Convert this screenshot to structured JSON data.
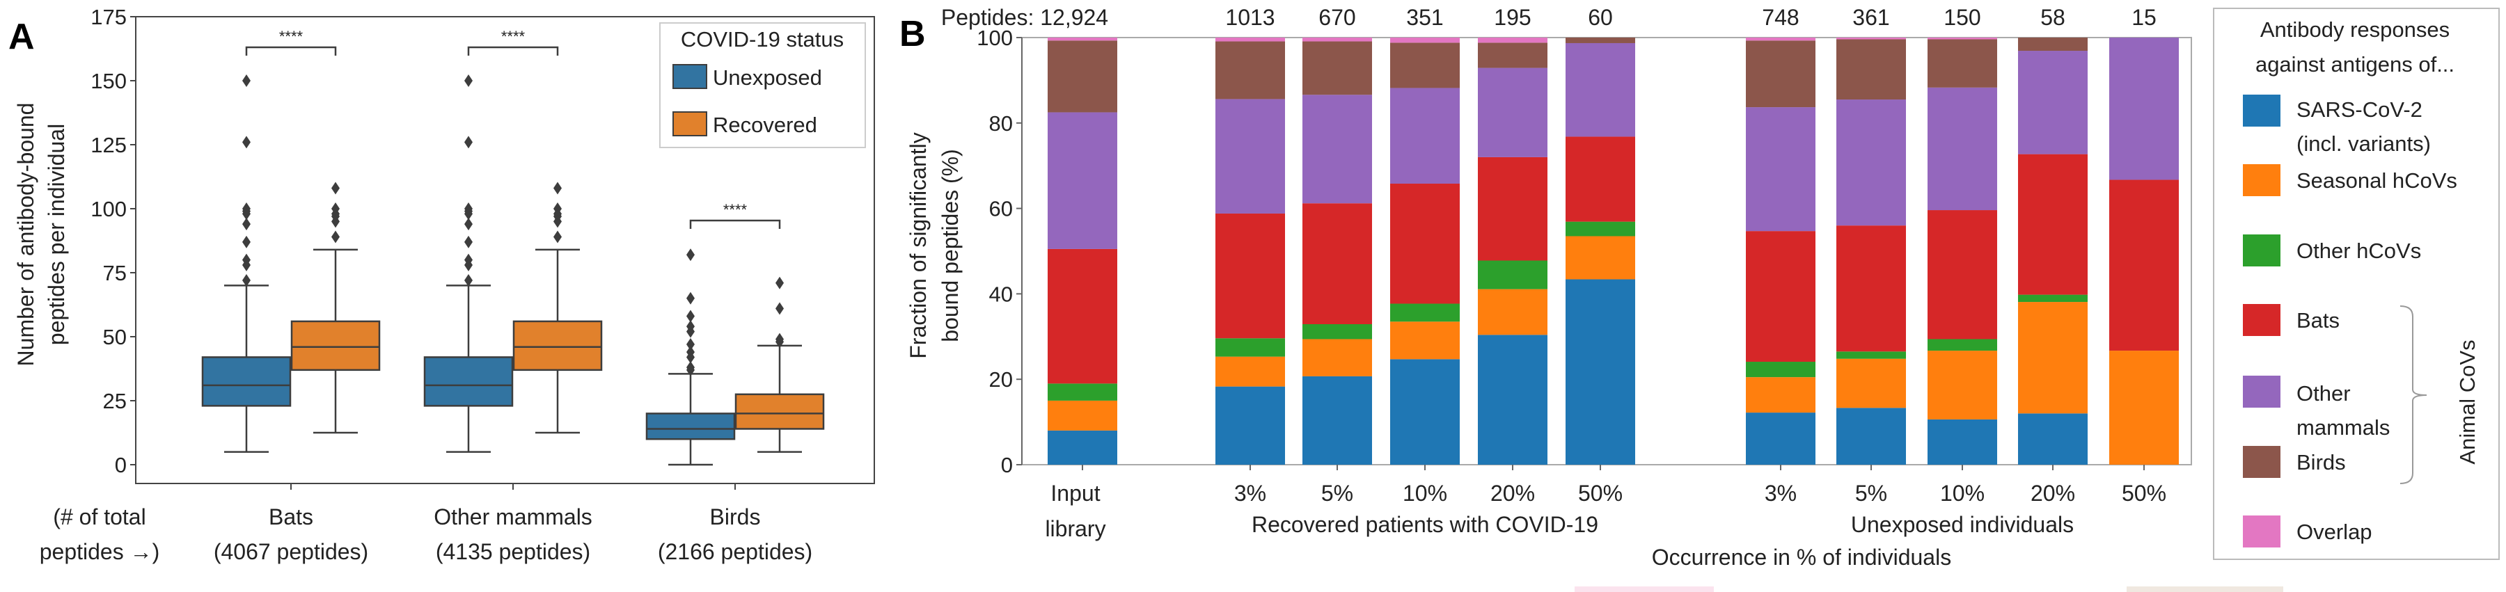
{
  "chart_data": [
    {
      "type": "box",
      "panel_label": "A",
      "ylabel": [
        "Number of antibody-bound",
        "peptides per individual"
      ],
      "ylim": [
        0,
        175
      ],
      "yticks": [
        "0",
        "25",
        "50",
        "75",
        "100",
        "125",
        "150",
        "175"
      ],
      "xnote": [
        "(# of total",
        "peptides →)"
      ],
      "categories": [
        {
          "name": "Bats",
          "sub": "(4067 peptides)",
          "significance": "****"
        },
        {
          "name": "Other mammals",
          "sub": "(4135 peptides)",
          "significance": "****"
        },
        {
          "name": "Birds",
          "sub": "(2166 peptides)",
          "significance": "****"
        }
      ],
      "legend": {
        "title": "COVID-19 status",
        "position": "top-right",
        "items": [
          "Unexposed",
          "Recovered"
        ]
      },
      "colors": {
        "Unexposed": "#3274a1",
        "Recovered": "#e1812c"
      },
      "series": [
        {
          "name": "Unexposed",
          "boxes": [
            {
              "low": 5,
              "q1": 23,
              "median": 31,
              "q3": 42,
              "high": 70,
              "outliers": [
                150,
                126,
                100,
                99,
                98,
                94,
                87,
                80,
                78,
                72
              ]
            },
            {
              "low": 5,
              "q1": 23,
              "median": 31,
              "q3": 42,
              "high": 70,
              "outliers": [
                150,
                126,
                100,
                99,
                98,
                94,
                87,
                80,
                78,
                72
              ]
            },
            {
              "low": 0,
              "q1": 10,
              "median": 14,
              "q3": 20,
              "high": 35.5,
              "outliers": [
                82,
                65,
                58,
                54,
                52,
                47,
                44,
                42,
                38,
                37
              ]
            }
          ]
        },
        {
          "name": "Recovered",
          "boxes": [
            {
              "low": 12.5,
              "q1": 37,
              "median": 46,
              "q3": 56,
              "high": 84,
              "outliers": [
                108,
                100,
                98,
                97,
                95,
                89
              ]
            },
            {
              "low": 12.5,
              "q1": 37,
              "median": 46,
              "q3": 56,
              "high": 84,
              "outliers": [
                108,
                100,
                98,
                97,
                95,
                89
              ]
            },
            {
              "low": 5,
              "q1": 14,
              "median": 20,
              "q3": 27.5,
              "high": 46.5,
              "outliers": [
                71,
                61,
                49,
                48
              ]
            }
          ]
        }
      ]
    },
    {
      "type": "stacked-bar",
      "panel_label": "B",
      "ylabel": [
        "Fraction of significantly",
        "bound peptides (%)"
      ],
      "ylim": [
        0,
        100
      ],
      "yticks": [
        "0",
        "20",
        "40",
        "60",
        "80",
        "100"
      ],
      "xlabel": "Occurrence in % of individuals",
      "groups": [
        {
          "label": "",
          "bars": [
            {
              "tick": [
                "Input",
                "library"
              ],
              "count": "Peptides: 12,924"
            }
          ]
        },
        {
          "label": "Recovered patients with COVID-19",
          "bars": [
            {
              "tick": [
                "3%"
              ],
              "count": "1013"
            },
            {
              "tick": [
                "5%"
              ],
              "count": "670"
            },
            {
              "tick": [
                "10%"
              ],
              "count": "351"
            },
            {
              "tick": [
                "20%"
              ],
              "count": "195"
            },
            {
              "tick": [
                "50%"
              ],
              "count": "60"
            }
          ]
        },
        {
          "label": "Unexposed individuals",
          "bars": [
            {
              "tick": [
                "3%"
              ],
              "count": "748"
            },
            {
              "tick": [
                "5%"
              ],
              "count": "361"
            },
            {
              "tick": [
                "10%"
              ],
              "count": "150"
            },
            {
              "tick": [
                "20%"
              ],
              "count": "58"
            },
            {
              "tick": [
                "50%"
              ],
              "count": "15"
            }
          ]
        }
      ],
      "series": [
        {
          "name": "SARS-CoV-2 (incl. variants)",
          "color": "#1f77b4",
          "values": [
            8,
            18.3,
            20.7,
            24.7,
            30.4,
            43.4,
            12.2,
            13.3,
            10.6,
            12,
            0
          ]
        },
        {
          "name": "Seasonal hCoVs",
          "color": "#ff7f0e",
          "values": [
            7,
            7,
            8.7,
            8.8,
            10.7,
            10.1,
            8.3,
            11.5,
            16.1,
            26.1,
            26.7
          ]
        },
        {
          "name": "Other hCoVs",
          "color": "#2ca02c",
          "values": [
            4,
            4.3,
            3.5,
            4.2,
            6.7,
            3.4,
            3.6,
            1.7,
            2.7,
            1.7,
            0
          ]
        },
        {
          "name": "Bats",
          "color": "#d62728",
          "values": [
            31.5,
            29.2,
            28.3,
            28.1,
            24.2,
            19.9,
            30.6,
            29.5,
            30.2,
            32.9,
            40
          ]
        },
        {
          "name": "Other mammals",
          "color": "#9467bd",
          "values": [
            32,
            26.8,
            25.4,
            22.4,
            20.9,
            21.9,
            29,
            29.5,
            28.7,
            24.2,
            33.3
          ]
        },
        {
          "name": "Birds",
          "color": "#8c564b",
          "values": [
            16.8,
            13.5,
            12.5,
            10.6,
            5.9,
            1.3,
            15.6,
            14.1,
            11.3,
            3.1,
            0
          ]
        },
        {
          "name": "Overlap",
          "color": "#e377c2",
          "values": [
            0.7,
            0.9,
            0.9,
            1.2,
            1.2,
            0,
            0.7,
            0.4,
            0.4,
            0,
            0
          ]
        }
      ],
      "legend": {
        "title": [
          "Antibody responses",
          "against antigens of..."
        ],
        "position": "right",
        "items": [
          [
            "SARS-CoV-2",
            "(incl. variants)"
          ],
          [
            "Seasonal hCoVs"
          ],
          [
            "Other hCoVs"
          ],
          [
            "Bats"
          ],
          [
            "Other",
            "mammals"
          ],
          [
            "Birds"
          ],
          [
            "Overlap"
          ]
        ],
        "bracket_label": "Animal CoVs"
      }
    }
  ]
}
